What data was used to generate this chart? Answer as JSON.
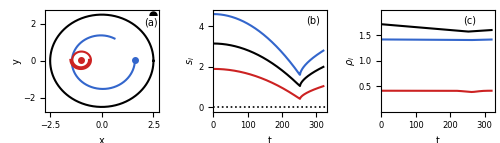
{
  "fig_width": 5.0,
  "fig_height": 1.43,
  "dpi": 100,
  "panel_a": {
    "xlim": [
      -2.75,
      2.75
    ],
    "ylim": [
      -2.75,
      2.75
    ],
    "xlabel": "x",
    "ylabel": "y",
    "label": "(a)",
    "black_dot": [
      2.5,
      2.5
    ],
    "red_dot": [
      -1.0,
      0.05
    ],
    "blue_dot": [
      1.6,
      0.05
    ],
    "xticks": [
      -2.5,
      0.0,
      2.5
    ],
    "yticks": [
      -2,
      0,
      2
    ]
  },
  "panel_b": {
    "xlim": [
      0,
      330
    ],
    "ylim": [
      -0.2,
      4.8
    ],
    "xlabel": "t",
    "ylabel": "$s_i$",
    "label": "(b)",
    "yticks": [
      0,
      2,
      4
    ],
    "xticks": [
      0,
      100,
      200,
      300
    ]
  },
  "panel_c": {
    "xlim": [
      0,
      330
    ],
    "ylim": [
      0.0,
      2.0
    ],
    "xlabel": "t",
    "label": "(c)",
    "yticks": [
      0.5,
      1.0,
      1.5
    ],
    "xticks": [
      0,
      100,
      200,
      300
    ]
  },
  "colors": {
    "black": "#000000",
    "blue": "#3366cc",
    "red": "#cc2222"
  }
}
